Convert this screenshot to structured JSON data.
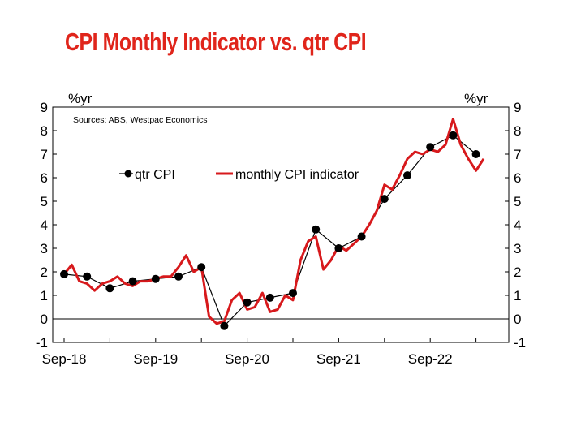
{
  "chart_data": {
    "type": "line",
    "title": "CPI Monthly Indicator vs. qtr CPI",
    "source": "Sources: ABS, Westpac Economics",
    "ylabel_left": "%yr",
    "ylabel_right": "%yr",
    "ylim": [
      -1,
      9
    ],
    "yticks": [
      "-1",
      "0",
      "1",
      "2",
      "3",
      "4",
      "5",
      "6",
      "7",
      "8",
      "9"
    ],
    "x_ticks": [
      "Sep-18",
      "Sep-19",
      "Sep-20",
      "Sep-21",
      "Sep-22"
    ],
    "legend_position": "top-left",
    "grid": false,
    "series": [
      {
        "name": "qtr CPI",
        "style": "line-markers",
        "color": "#000000",
        "x": [
          0,
          3,
          6,
          9,
          12,
          15,
          18,
          21,
          24,
          27,
          30,
          33,
          36,
          39,
          42,
          45,
          48,
          51,
          54
        ],
        "values": [
          1.9,
          1.8,
          1.3,
          1.6,
          1.7,
          1.8,
          2.2,
          -0.3,
          0.7,
          0.9,
          1.1,
          3.8,
          3.0,
          3.5,
          5.1,
          6.1,
          7.3,
          7.8,
          7.0
        ]
      },
      {
        "name": "monthly CPI indicator",
        "style": "line",
        "color": "#d7191c",
        "x": [
          0,
          1,
          2,
          3,
          4,
          5,
          6,
          7,
          8,
          9,
          10,
          11,
          12,
          13,
          14,
          15,
          16,
          17,
          18,
          19,
          20,
          21,
          22,
          23,
          24,
          25,
          26,
          27,
          28,
          29,
          30,
          31,
          32,
          33,
          34,
          35,
          36,
          37,
          38,
          39,
          40,
          41,
          42,
          43,
          44,
          45,
          46,
          47,
          48,
          49,
          50,
          51,
          52,
          53,
          54,
          55
        ],
        "values": [
          1.9,
          2.3,
          1.6,
          1.5,
          1.2,
          1.5,
          1.6,
          1.8,
          1.5,
          1.4,
          1.6,
          1.6,
          1.7,
          1.8,
          1.8,
          2.2,
          2.7,
          2.0,
          2.2,
          0.1,
          -0.2,
          -0.1,
          0.8,
          1.1,
          0.4,
          0.5,
          1.1,
          0.3,
          0.4,
          1.0,
          0.8,
          2.5,
          3.3,
          3.5,
          2.1,
          2.5,
          3.1,
          2.9,
          3.2,
          3.5,
          4.0,
          4.6,
          5.7,
          5.5,
          6.1,
          6.8,
          7.1,
          7.0,
          7.2,
          7.1,
          7.4,
          8.5,
          7.4,
          6.8,
          6.3,
          6.8
        ]
      }
    ]
  }
}
